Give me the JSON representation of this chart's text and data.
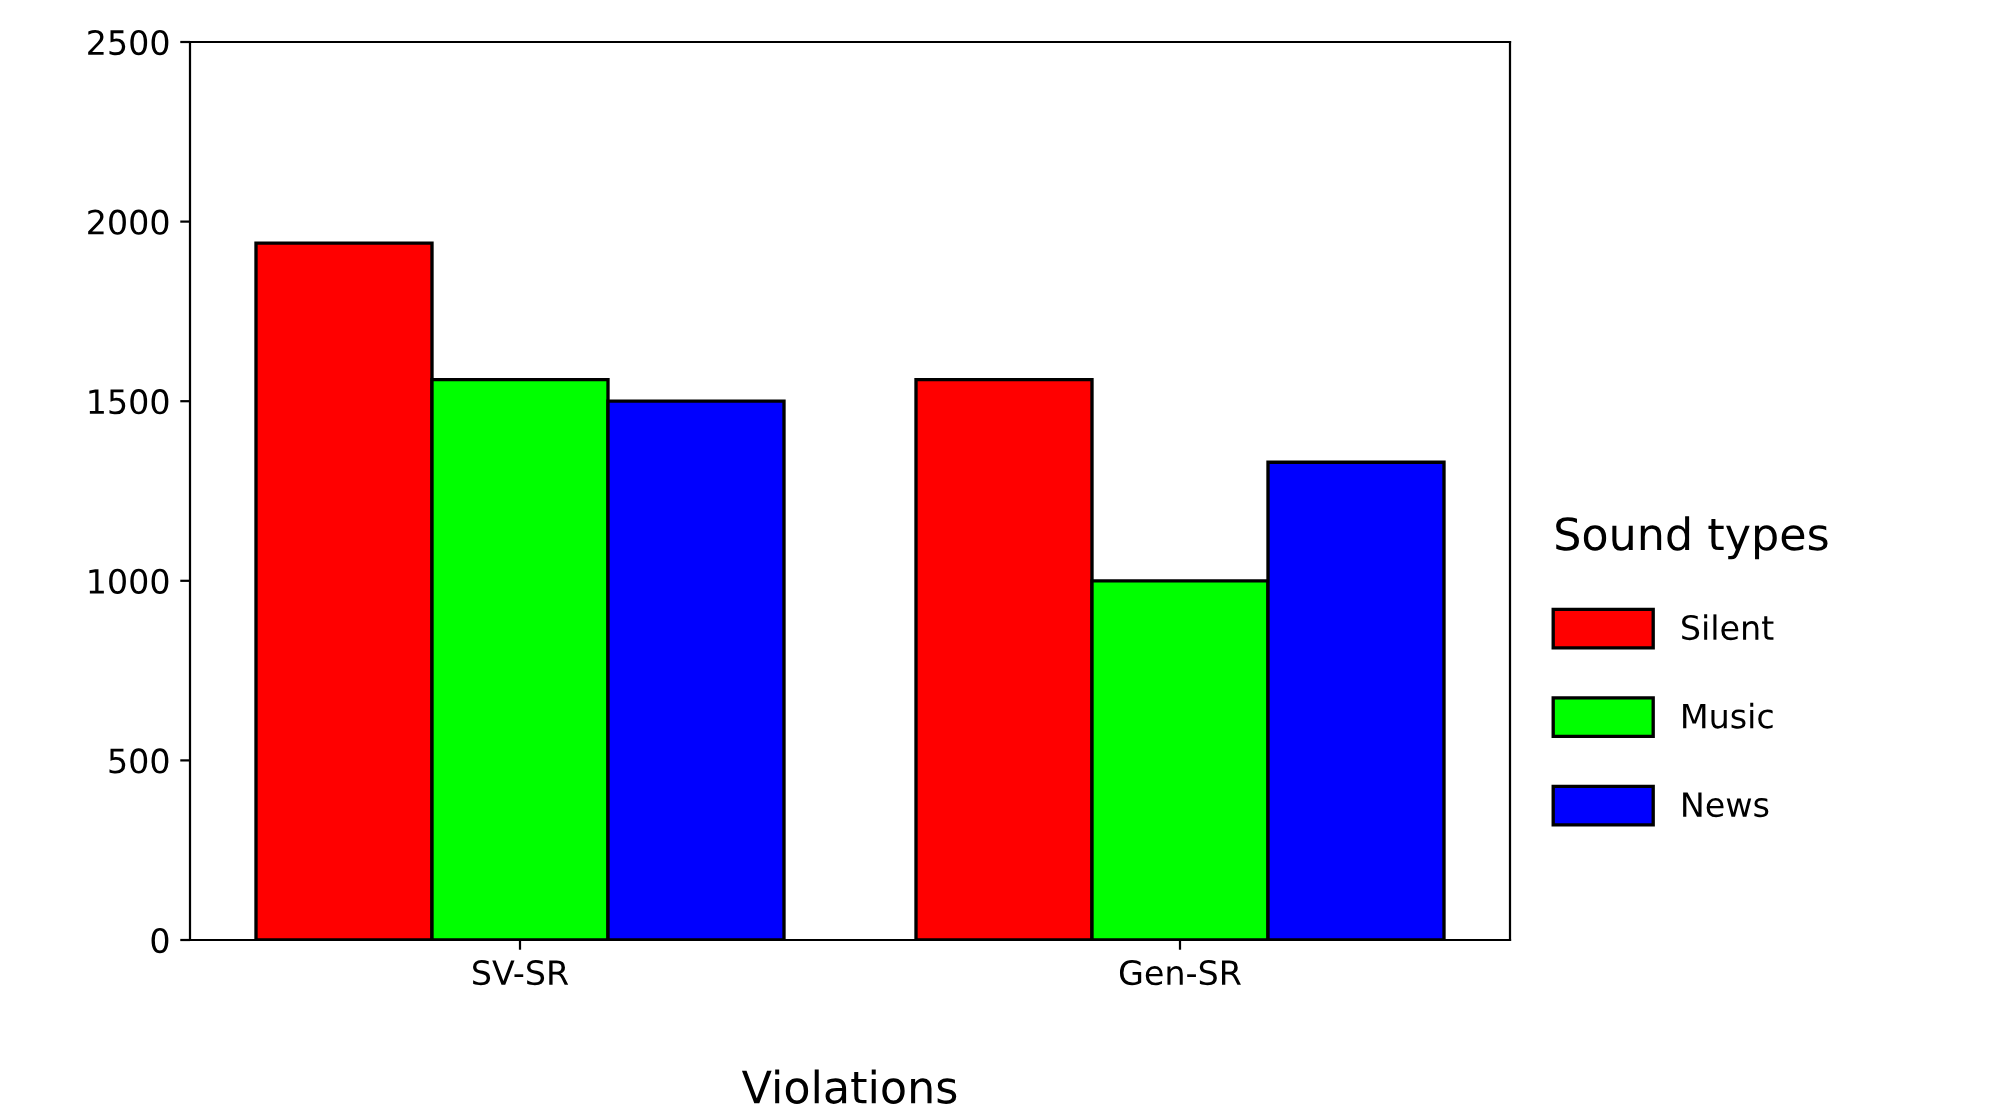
{
  "chart_data": {
    "type": "bar",
    "xlabel": "Violations",
    "legend_title": "Sound types",
    "categories": [
      "SV-SR",
      "Gen-SR"
    ],
    "series": [
      {
        "name": "Silent",
        "color": "#ff0000",
        "values": [
          1940,
          1560
        ]
      },
      {
        "name": "Music",
        "color": "#00ff00",
        "values": [
          1560,
          1000
        ]
      },
      {
        "name": "News",
        "color": "#0000ff",
        "values": [
          1500,
          1330
        ]
      }
    ],
    "ylim": [
      0,
      2500
    ],
    "yticks": [
      0,
      500,
      1000,
      1500,
      2000,
      2500
    ],
    "grid": false,
    "legend": "right"
  }
}
